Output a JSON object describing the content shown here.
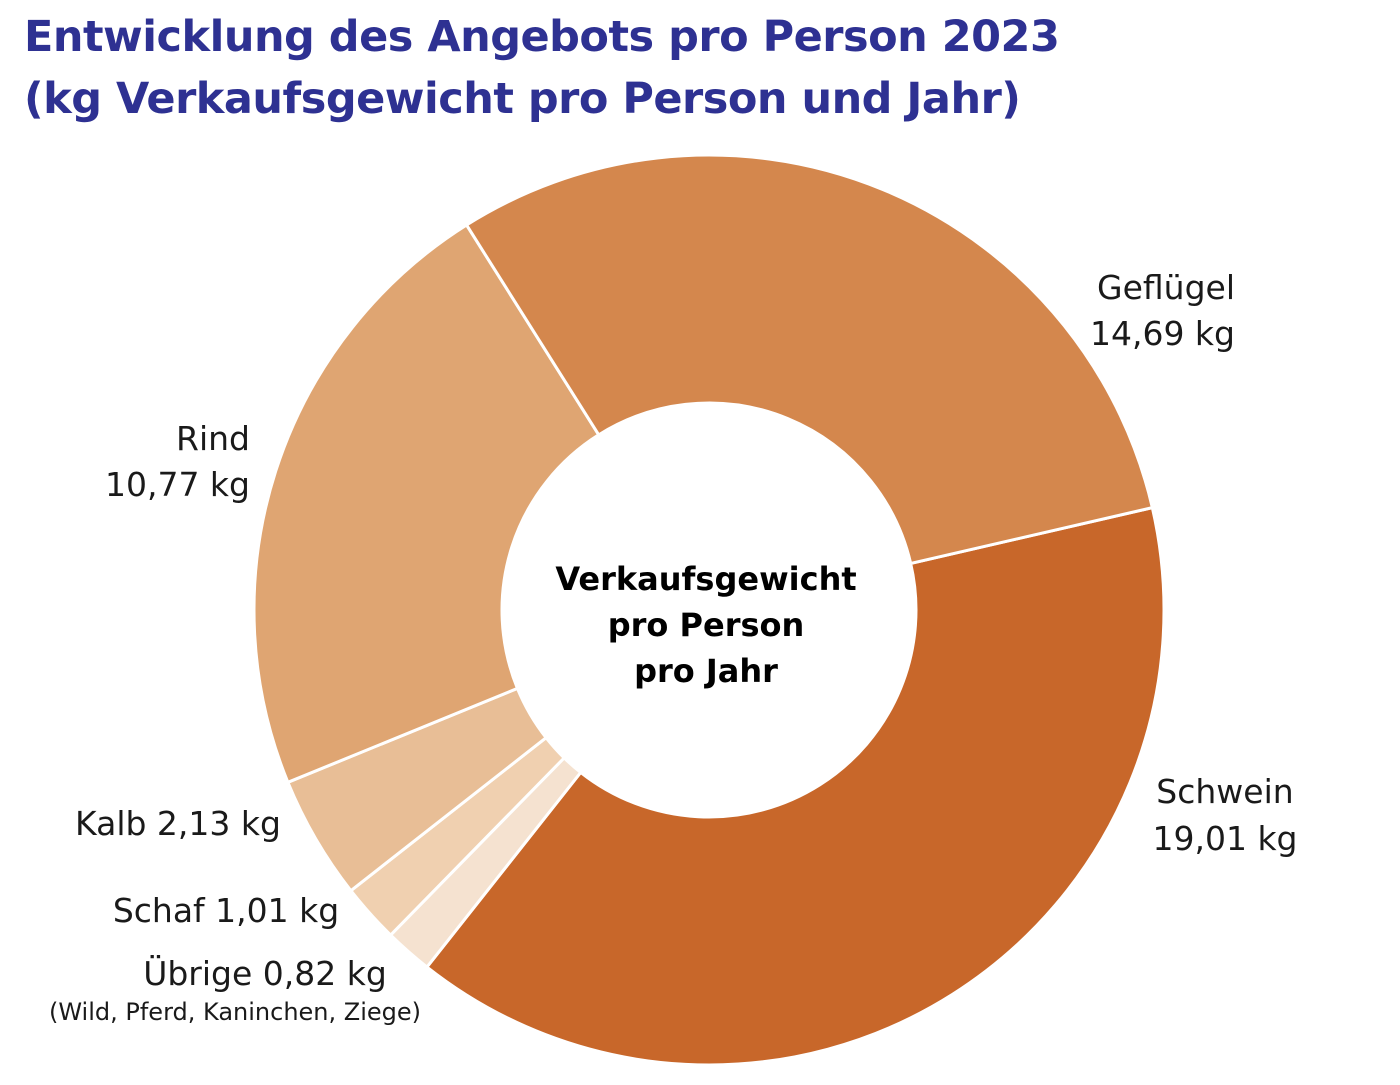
{
  "title": {
    "line1": "Entwicklung des Angebots pro Person 2023",
    "line2": "(kg Verkaufsgewicht pro Person und Jahr)"
  },
  "chart_data": {
    "type": "pie",
    "title": "Entwicklung des Angebots pro Person 2023 (kg Verkaufsgewicht pro Person und Jahr)",
    "center_label": [
      "Verkaufsgewicht",
      "pro Person",
      "pro Jahr"
    ],
    "unit": "kg",
    "slices": [
      {
        "name": "Schwein",
        "value": 19.01,
        "display": "19,01 kg",
        "color": "#C8672A",
        "label_lines": [
          "Schwein",
          "19,01 kg"
        ]
      },
      {
        "name": "Übrige",
        "value": 0.82,
        "display": "0,82 kg",
        "color": "#F5E2D0",
        "label_lines": [
          "Übrige 0,82 kg"
        ],
        "note": "(Wild, Pferd, Kaninchen, Ziege)"
      },
      {
        "name": "Schaf",
        "value": 1.01,
        "display": "1,01 kg",
        "color": "#F0D0B0",
        "label_lines": [
          "Schaf 1,01 kg"
        ]
      },
      {
        "name": "Kalb",
        "value": 2.13,
        "display": "2,13 kg",
        "color": "#E8BE96",
        "label_lines": [
          "Kalb 2,13 kg"
        ]
      },
      {
        "name": "Rind",
        "value": 10.77,
        "display": "10,77 kg",
        "color": "#DFA572",
        "label_lines": [
          "Rind",
          "10,77 kg"
        ]
      },
      {
        "name": "Geflügel",
        "value": 14.69,
        "display": "14,69 kg",
        "color": "#D4874D",
        "label_lines": [
          "Geflügel",
          "14,69 kg"
        ]
      }
    ]
  }
}
